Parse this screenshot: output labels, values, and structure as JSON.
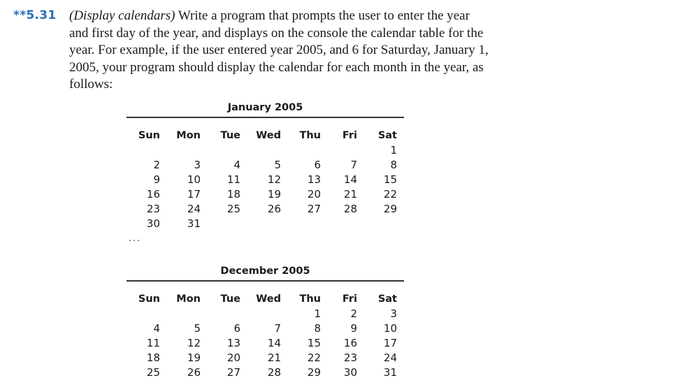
{
  "exercise": {
    "number": "**5.31",
    "title": "(Display calendars)",
    "lines": [
      " Write a program that prompts the user to enter the year",
      "and first day of the year, and displays on the console the calendar table for the",
      "year. For example, if the user entered year 2005, and 6 for Saturday, January 1,",
      "2005, your program should display the calendar for each month in the year, as",
      "follows:"
    ]
  },
  "calendars": [
    {
      "title": "January 2005",
      "days": [
        "Sun",
        "Mon",
        "Tue",
        "Wed",
        "Thu",
        "Fri",
        "Sat"
      ],
      "weeks": [
        [
          "",
          "",
          "",
          "",
          "",
          "",
          "1"
        ],
        [
          "2",
          "3",
          "4",
          "5",
          "6",
          "7",
          "8"
        ],
        [
          "9",
          "10",
          "11",
          "12",
          "13",
          "14",
          "15"
        ],
        [
          "16",
          "17",
          "18",
          "19",
          "20",
          "21",
          "22"
        ],
        [
          "23",
          "24",
          "25",
          "26",
          "27",
          "28",
          "29"
        ],
        [
          "30",
          "31",
          "",
          "",
          "",
          "",
          ""
        ]
      ]
    },
    {
      "title": "December 2005",
      "days": [
        "Sun",
        "Mon",
        "Tue",
        "Wed",
        "Thu",
        "Fri",
        "Sat"
      ],
      "weeks": [
        [
          "",
          "",
          "",
          "",
          "1",
          "2",
          "3"
        ],
        [
          "4",
          "5",
          "6",
          "7",
          "8",
          "9",
          "10"
        ],
        [
          "11",
          "12",
          "13",
          "14",
          "15",
          "16",
          "17"
        ],
        [
          "18",
          "19",
          "20",
          "21",
          "22",
          "23",
          "24"
        ],
        [
          "25",
          "26",
          "27",
          "28",
          "29",
          "30",
          "31"
        ]
      ]
    }
  ],
  "ellipsis": "..."
}
